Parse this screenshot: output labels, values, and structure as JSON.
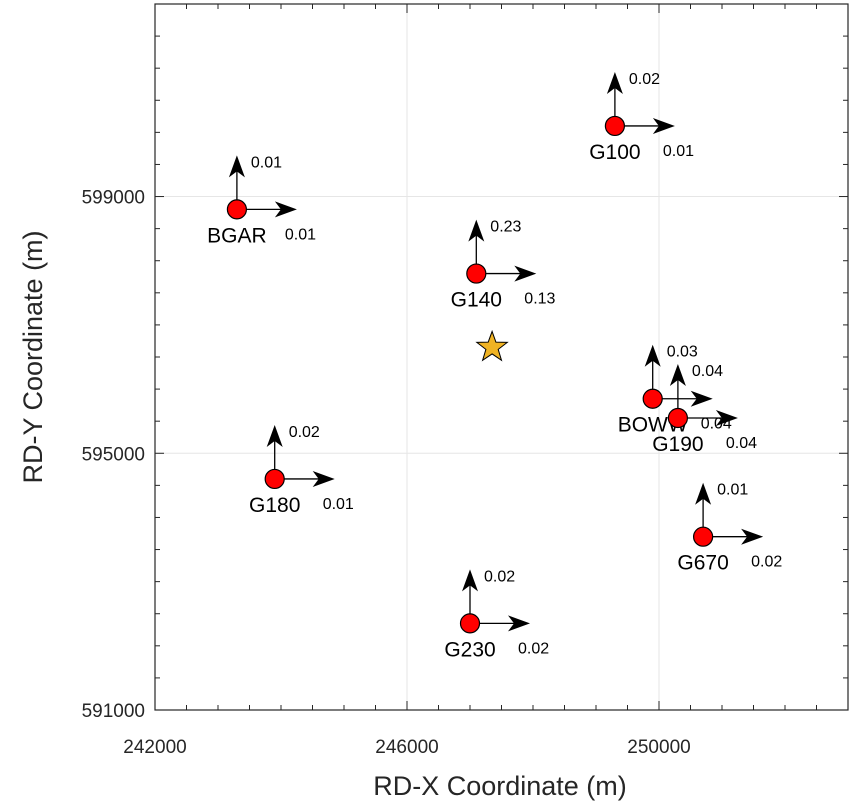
{
  "chart_data": {
    "type": "scatter",
    "title": "",
    "xlabel": "RD-X Coordinate (m)",
    "ylabel": "RD-Y Coordinate (m)",
    "xlim": [
      242000,
      253000
    ],
    "ylim": [
      591000,
      602000
    ],
    "xticks": [
      242000,
      246000,
      250000
    ],
    "yticks": [
      591000,
      595000,
      599000
    ],
    "xtick_labels": [
      "242000",
      "246000",
      "250000"
    ],
    "ytick_labels": [
      "591000",
      "595000",
      "599000"
    ],
    "grid": true,
    "stations": [
      {
        "name": "G100",
        "x": 249300,
        "y": 600100,
        "north": "0.02",
        "east": "0.01"
      },
      {
        "name": "BGAR",
        "x": 243300,
        "y": 598800,
        "north": "0.01",
        "east": "0.01"
      },
      {
        "name": "G140",
        "x": 247100,
        "y": 597800,
        "north": "0.23",
        "east": "0.13"
      },
      {
        "name": "BOWW",
        "x": 249900,
        "y": 595850,
        "north": "0.03",
        "east": "0.04"
      },
      {
        "name": "G190",
        "x": 250300,
        "y": 595550,
        "north": "0.04",
        "east": "0.04"
      },
      {
        "name": "G180",
        "x": 243900,
        "y": 594600,
        "north": "0.02",
        "east": "0.01"
      },
      {
        "name": "G670",
        "x": 250700,
        "y": 593700,
        "north": "0.01",
        "east": "0.02"
      },
      {
        "name": "G230",
        "x": 247000,
        "y": 592350,
        "north": "0.02",
        "east": "0.02"
      }
    ],
    "epicenter": {
      "x": 247350,
      "y": 596650
    },
    "colors": {
      "station": "#ff0000",
      "epicenter": "#f0b323",
      "arrow": "#000000",
      "grid": "#e6e6e6"
    }
  }
}
